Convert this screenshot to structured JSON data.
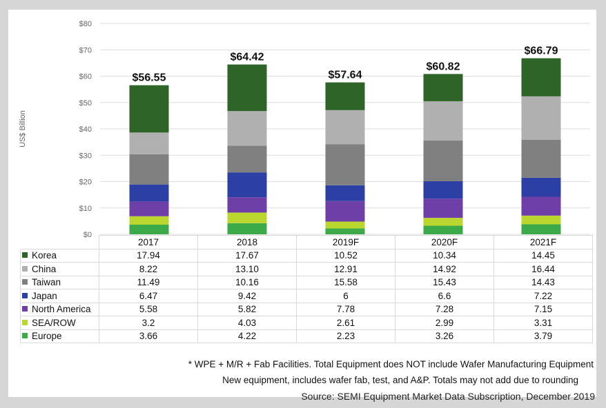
{
  "chart_data": {
    "type": "bar",
    "stacked": true,
    "ylabel": "US$ Billion",
    "ylim": [
      0,
      80
    ],
    "yticks": [
      "$0",
      "$10",
      "$20",
      "$30",
      "$40",
      "$50",
      "$60",
      "$70",
      "$80"
    ],
    "categories": [
      "2017",
      "2018",
      "2019F",
      "2020F",
      "2021F"
    ],
    "totals": [
      "$56.55",
      "$64.42",
      "$57.64",
      "$60.82",
      "$66.79"
    ],
    "series": [
      {
        "name": "Europe",
        "color": "#3daa4a",
        "values": [
          3.66,
          4.22,
          2.23,
          3.26,
          3.79
        ],
        "labels": [
          "3.66",
          "4.22",
          "2.23",
          "3.26",
          "3.79"
        ]
      },
      {
        "name": "SEA/ROW",
        "color": "#bcd630",
        "values": [
          3.2,
          4.03,
          2.61,
          2.99,
          3.31
        ],
        "labels": [
          "3.2",
          "4.03",
          "2.61",
          "2.99",
          "3.31"
        ]
      },
      {
        "name": "North America",
        "color": "#6f3fa8",
        "values": [
          5.58,
          5.82,
          7.78,
          7.28,
          7.15
        ],
        "labels": [
          "5.58",
          "5.82",
          "7.78",
          "7.28",
          "7.15"
        ]
      },
      {
        "name": "Japan",
        "color": "#2b3fa4",
        "values": [
          6.47,
          9.42,
          6,
          6.6,
          7.22
        ],
        "labels": [
          "6.47",
          "9.42",
          "6",
          "6.6",
          "7.22"
        ]
      },
      {
        "name": "Taiwan",
        "color": "#808080",
        "values": [
          11.49,
          10.16,
          15.58,
          15.43,
          14.43
        ],
        "labels": [
          "11.49",
          "10.16",
          "15.58",
          "15.43",
          "14.43"
        ]
      },
      {
        "name": "China",
        "color": "#b0b0b0",
        "values": [
          8.22,
          13.1,
          12.91,
          14.92,
          16.44
        ],
        "labels": [
          "8.22",
          "13.10",
          "12.91",
          "14.92",
          "16.44"
        ]
      },
      {
        "name": "Korea",
        "color": "#2e6427",
        "values": [
          17.94,
          17.67,
          10.52,
          10.34,
          14.45
        ],
        "labels": [
          "17.94",
          "17.67",
          "10.52",
          "10.34",
          "14.45"
        ]
      }
    ],
    "table_row_order": [
      "Korea",
      "China",
      "Taiwan",
      "Japan",
      "North America",
      "SEA/ROW",
      "Europe"
    ]
  },
  "notes": {
    "line1": "* WPE + M/R + Fab Facilities. Total Equipment does NOT include Wafer Manufacturing Equipment",
    "line2": "New equipment, includes wafer fab, test, and A&P. Totals may not add due to rounding",
    "source": "Source: SEMI Equipment Market Data Subscription, December 2019"
  }
}
